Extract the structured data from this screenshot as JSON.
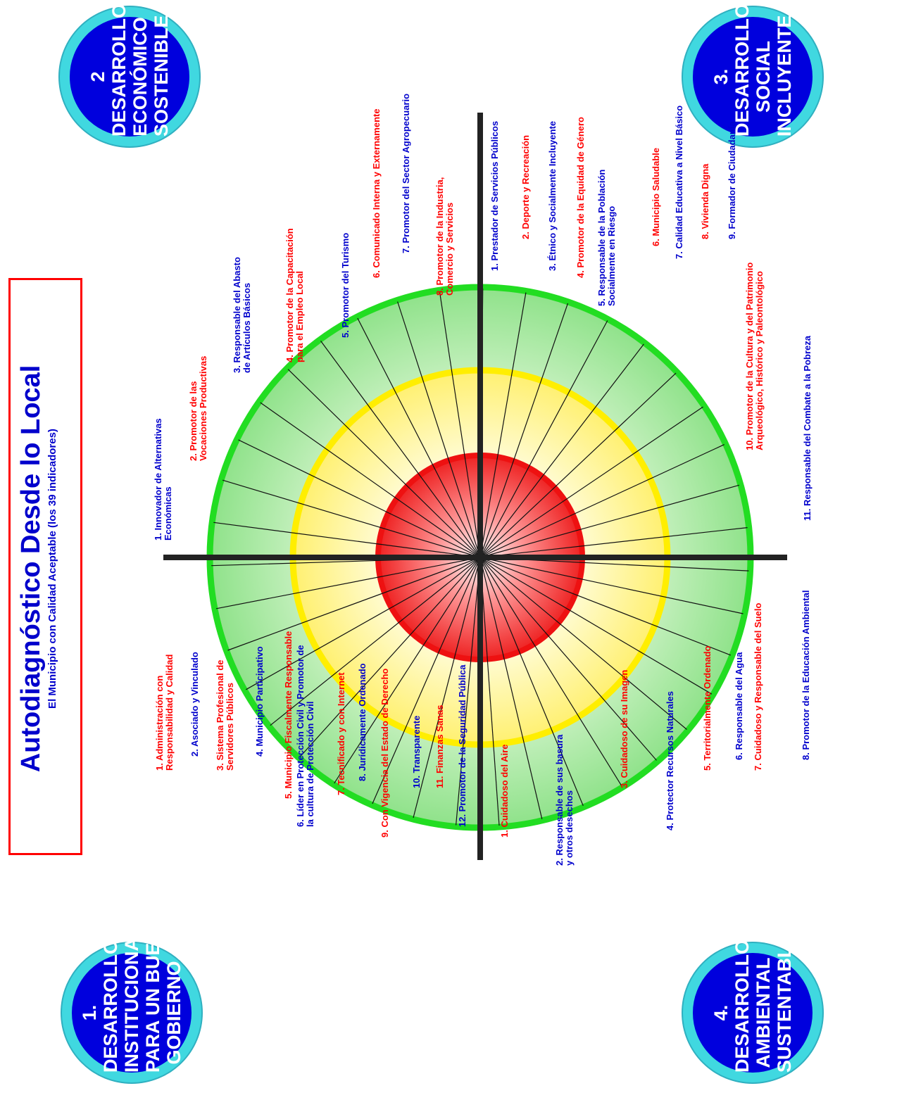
{
  "title": {
    "main": "Autodiagnóstico Desde lo Local",
    "sub": "El Municipio con Calidad Aceptable (los 39 indicadores)"
  },
  "colors": {
    "outer": "#44d844",
    "middle": "#ffff22",
    "inner": "#ee1111",
    "badge": "#0000dd",
    "badge_ring": "#40d8e0",
    "label_red": "#ff0000",
    "label_blue": "#0000cc"
  },
  "badges": {
    "b1": [
      "1.",
      "DESARROLLO",
      "INSTITUCIONAL",
      "PARA UN BUEN",
      "GOBIERNO"
    ],
    "b2": [
      "2",
      "DESARROLLO",
      "ECONÓMICO",
      "SOSTENIBLE"
    ],
    "b3": [
      "3.",
      "DESARROLLO",
      "SOCIAL",
      "INCLUYENTE"
    ],
    "b4": [
      "4.",
      "DESARROLLO",
      "AMBIENTAL",
      "SUSTENTABL"
    ]
  },
  "indicators": {
    "d1": [
      {
        "text": [
          "1. Administración con",
          "Responsabilidad y Calidad"
        ],
        "color": "red"
      },
      {
        "text": [
          "2. Asociado y Vinculado"
        ],
        "color": "blue"
      },
      {
        "text": [
          "3. Sistema Profesional de",
          "Servidores Públicos"
        ],
        "color": "red"
      },
      {
        "text": [
          "4. Municipio Participativo"
        ],
        "color": "blue"
      },
      {
        "text": [
          "5. Municipio Fiscalmente Responsable"
        ],
        "color": "red"
      },
      {
        "text": [
          "6. Líder en Protección Civil y Promotor de",
          "la cultura de Protección Civil"
        ],
        "color": "blue"
      },
      {
        "text": [
          "7. Tecnificado y con Internet"
        ],
        "color": "red"
      },
      {
        "text": [
          "8. Jurídicamente Ordenado"
        ],
        "color": "blue"
      },
      {
        "text": [
          "9. Con Vigencia del Estado de Derecho"
        ],
        "color": "red"
      },
      {
        "text": [
          "10. Transparente"
        ],
        "color": "blue"
      },
      {
        "text": [
          "11. Finanzas Sanas"
        ],
        "color": "red"
      },
      {
        "text": [
          "12. Promotor de la Seguridad Pública"
        ],
        "color": "blue"
      }
    ],
    "d2": [
      {
        "text": [
          "1. Innovador de Alternativas",
          "Económicas"
        ],
        "color": "blue"
      },
      {
        "text": [
          "2. Promotor de las",
          "Vocaciones Productivas"
        ],
        "color": "red"
      },
      {
        "text": [
          "3. Responsable del Abasto",
          "de Artículos Básicos"
        ],
        "color": "blue"
      },
      {
        "text": [
          "4. Promotor de la Capacitación",
          "para el Empleo Local"
        ],
        "color": "red"
      },
      {
        "text": [
          "5. Promotor del Turismo"
        ],
        "color": "blue"
      },
      {
        "text": [
          "6. Comunicado Interna y Externamente"
        ],
        "color": "red"
      },
      {
        "text": [
          "7. Promotor del Sector Agropecuario"
        ],
        "color": "blue"
      },
      {
        "text": [
          "8. Promotor de la Industria,",
          "Comercio y Servicios"
        ],
        "color": "red"
      }
    ],
    "d3": [
      {
        "text": [
          "1. Prestador de Servicios Públicos"
        ],
        "color": "blue"
      },
      {
        "text": [
          "2. Deporte y Recreación"
        ],
        "color": "red"
      },
      {
        "text": [
          "3. Étnico y Socialmente Incluyente"
        ],
        "color": "blue"
      },
      {
        "text": [
          "4. Promotor de la Equidad de Género"
        ],
        "color": "red"
      },
      {
        "text": [
          "5. Responsable de la Población",
          "Socialmente en Riesgo"
        ],
        "color": "blue"
      },
      {
        "text": [
          "6. Municipio Saludable"
        ],
        "color": "red"
      },
      {
        "text": [
          "7. Calidad Educativa a Nivel Básico"
        ],
        "color": "blue"
      },
      {
        "text": [
          "8. Vivienda Digna"
        ],
        "color": "red"
      },
      {
        "text": [
          "9. Formador de Ciudadanía"
        ],
        "color": "blue"
      },
      {
        "text": [
          "10. Promotor de la Cultura y del Patrimonio",
          "Arqueológico, Histórico y Paleontológico"
        ],
        "color": "red"
      },
      {
        "text": [
          "11. Responsable del Combate a la Pobreza"
        ],
        "color": "blue"
      }
    ],
    "d4": [
      {
        "text": [
          "1. Cuidadoso del Aire"
        ],
        "color": "red"
      },
      {
        "text": [
          "2. Responsable de sus basura",
          "y otros desechos"
        ],
        "color": "blue"
      },
      {
        "text": [
          "3. Cuidadoso de su Imagen"
        ],
        "color": "red"
      },
      {
        "text": [
          "4. Protector Recursos Naturales"
        ],
        "color": "blue"
      },
      {
        "text": [
          "5. Territorialmente Ordenado"
        ],
        "color": "red"
      },
      {
        "text": [
          "6. Responsable del Agua"
        ],
        "color": "blue"
      },
      {
        "text": [
          "7. Cuidadoso y Responsable del Suelo"
        ],
        "color": "red"
      },
      {
        "text": [
          "8. Promotor de la Educación Ambiental"
        ],
        "color": "blue"
      }
    ]
  }
}
